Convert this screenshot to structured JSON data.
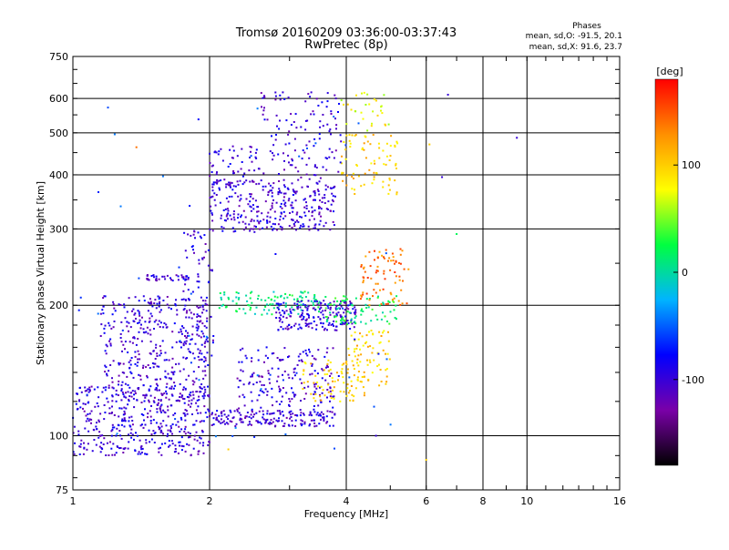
{
  "chart_data": {
    "type": "scatter",
    "title": "Tromsø 20160209 03:36:00-03:37:43",
    "subtitle": "RwPretec (8p)",
    "xlabel": "Frequency [MHz]",
    "ylabel": "Stationary phase Virtual Height [km]",
    "x_scale": "log",
    "y_scale": "log",
    "xlim": [
      1,
      16
    ],
    "ylim": [
      75,
      750
    ],
    "x_ticks": [
      1,
      2,
      4,
      6,
      8,
      10,
      16
    ],
    "y_ticks": [
      75,
      100,
      200,
      300,
      400,
      500,
      600,
      750
    ],
    "grid": true,
    "colorbar": {
      "label": "[deg]",
      "range": [
        -180,
        180
      ],
      "ticks": [
        100,
        0,
        -100
      ],
      "colors": [
        "#000000",
        "#7a00a8",
        "#0000ff",
        "#00b4ff",
        "#00ff40",
        "#ffff00",
        "#ff9000",
        "#ff0000"
      ]
    },
    "stats": {
      "heading": "Phases",
      "o_line": "mean, sd,O: -91.5, 20.1",
      "x_line": "mean, sd,X:  91.6, 23.7"
    },
    "clusters": [
      {
        "x": [
          1.0,
          2.0
        ],
        "y": [
          90,
          130
        ],
        "phase": -100,
        "density": 420
      },
      {
        "x": [
          1.15,
          2.0
        ],
        "y": [
          120,
          210
        ],
        "phase": -100,
        "density": 380
      },
      {
        "x": [
          1.45,
          1.8
        ],
        "y": [
          228,
          235
        ],
        "phase": -100,
        "density": 40
      },
      {
        "x": [
          1.75,
          2.05
        ],
        "y": [
          150,
          300
        ],
        "phase": -100,
        "density": 90
      },
      {
        "x": [
          2.0,
          3.8
        ],
        "y": [
          105,
          115
        ],
        "phase": -100,
        "density": 180
      },
      {
        "x": [
          2.3,
          3.8
        ],
        "y": [
          115,
          160
        ],
        "phase": -100,
        "density": 170
      },
      {
        "x": [
          2.1,
          3.5
        ],
        "y": [
          190,
          215
        ],
        "phase": 10,
        "density": 110
      },
      {
        "x": [
          2.8,
          4.2
        ],
        "y": [
          175,
          205
        ],
        "phase": -100,
        "density": 190
      },
      {
        "x": [
          3.6,
          5.2
        ],
        "y": [
          180,
          210
        ],
        "phase": 20,
        "density": 80
      },
      {
        "x": [
          3.2,
          4.4
        ],
        "y": [
          120,
          150
        ],
        "phase": 100,
        "density": 80
      },
      {
        "x": [
          4.0,
          5.0
        ],
        "y": [
          130,
          175
        ],
        "phase": 100,
        "density": 70
      },
      {
        "x": [
          4.3,
          5.5
        ],
        "y": [
          200,
          270
        ],
        "phase": 140,
        "density": 80
      },
      {
        "x": [
          2.0,
          3.8
        ],
        "y": [
          295,
          390
        ],
        "phase": -100,
        "density": 320
      },
      {
        "x": [
          2.0,
          2.6
        ],
        "y": [
          380,
          470
        ],
        "phase": -100,
        "density": 50
      },
      {
        "x": [
          2.6,
          3.9
        ],
        "y": [
          390,
          620
        ],
        "phase": -100,
        "density": 120
      },
      {
        "x": [
          3.9,
          5.2
        ],
        "y": [
          360,
          500
        ],
        "phase": 100,
        "density": 80
      },
      {
        "x": [
          3.9,
          5.0
        ],
        "y": [
          500,
          620
        ],
        "phase": 80,
        "density": 30
      },
      {
        "x": [
          1.0,
          5.5
        ],
        "y": [
          90,
          600
        ],
        "phase": -60,
        "density": 60
      }
    ],
    "sparse_points": [
      {
        "x": 1.38,
        "y": 463,
        "phase": 140
      },
      {
        "x": 6.7,
        "y": 612,
        "phase": -100
      },
      {
        "x": 9.5,
        "y": 487,
        "phase": -100
      },
      {
        "x": 6.5,
        "y": 395,
        "phase": -100
      },
      {
        "x": 7.0,
        "y": 292,
        "phase": 20
      },
      {
        "x": 6.0,
        "y": 88,
        "phase": 100
      },
      {
        "x": 6.1,
        "y": 470,
        "phase": 100
      },
      {
        "x": 4.65,
        "y": 100,
        "phase": -100
      },
      {
        "x": 2.9,
        "y": 620,
        "phase": -100
      },
      {
        "x": 3.35,
        "y": 620,
        "phase": -100
      },
      {
        "x": 2.2,
        "y": 93,
        "phase": 100
      }
    ]
  }
}
